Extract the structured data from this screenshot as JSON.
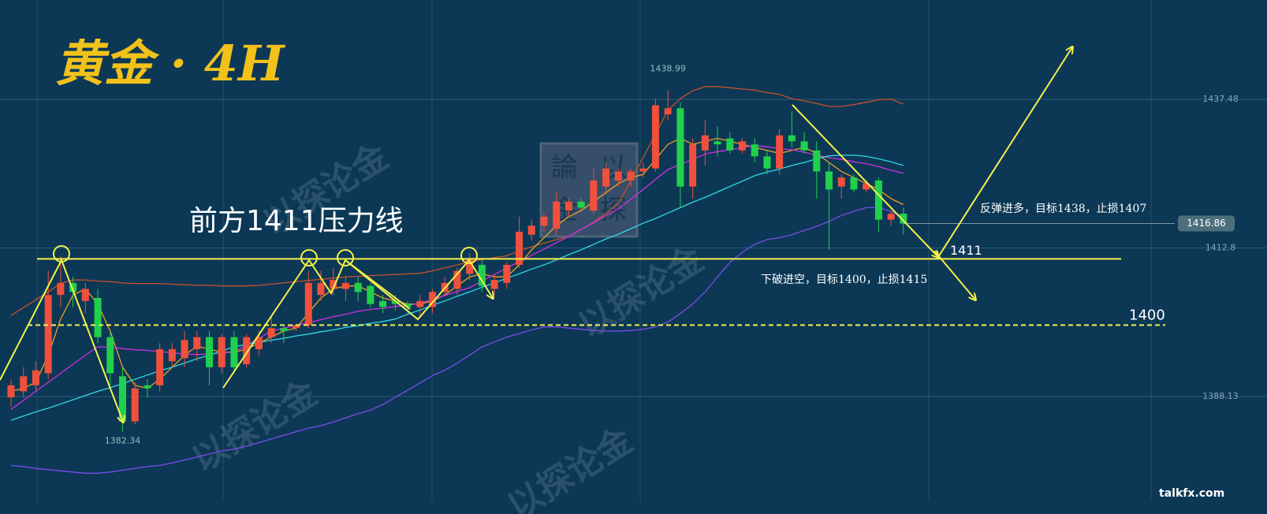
{
  "chart_data": {
    "type": "candlestick",
    "title": "黄金 · 4H",
    "ylim": [
      1370.73,
      1453.97
    ],
    "yticks": [
      1388.13,
      1412.8,
      1437.48
    ],
    "grid": true,
    "up_color": "#f0503c",
    "down_color": "#1fd14b",
    "open": [
      1388,
      1389,
      1390,
      1392,
      1405,
      1407,
      1404,
      1404.5,
      1398,
      1391.5,
      1384,
      1390,
      1390,
      1394,
      1394.5,
      1396,
      1398,
      1393,
      1398,
      1393.5,
      1396,
      1398,
      1399.5,
      1399.5,
      1400,
      1405,
      1406,
      1406,
      1407,
      1406.5,
      1404,
      1404,
      1403.5,
      1403,
      1403,
      1405.5,
      1406,
      1408.5,
      1410,
      1406,
      1407,
      1410,
      1415,
      1416.5,
      1416,
      1419,
      1420.5,
      1419,
      1423,
      1424,
      1424,
      1425.5,
      1426,
      1435,
      1436,
      1423,
      1429,
      1430.5,
      1431,
      1429,
      1430,
      1428,
      1426,
      1431.5,
      1430.5,
      1429,
      1425.5,
      1423,
      1424.5,
      1422.5,
      1424,
      1417.5,
      1418.5
    ],
    "high": [
      1391,
      1393,
      1394,
      1409,
      1411.5,
      1408,
      1407,
      1406,
      1399,
      1393,
      1390.5,
      1391,
      1397,
      1397,
      1399,
      1399,
      1399,
      1398.5,
      1399,
      1398.5,
      1399,
      1401.5,
      1400,
      1400,
      1409,
      1409,
      1409.5,
      1408,
      1408,
      1407,
      1405,
      1405,
      1404,
      1405,
      1406,
      1408,
      1409.5,
      1412,
      1411,
      1408.5,
      1410.5,
      1418,
      1417.5,
      1418.5,
      1422,
      1421,
      1421,
      1426,
      1427,
      1426,
      1426,
      1427,
      1437.5,
      1438.99,
      1437,
      1431,
      1434,
      1433,
      1432,
      1431,
      1431,
      1429,
      1432.5,
      1435.5,
      1432,
      1430.5,
      1427,
      1425,
      1425,
      1424,
      1424.5,
      1419,
      1419.5
    ],
    "low": [
      1386.5,
      1388,
      1389,
      1391,
      1403,
      1403,
      1402,
      1397,
      1390,
      1382.34,
      1383.5,
      1388,
      1389,
      1393,
      1393,
      1394,
      1390,
      1392,
      1392,
      1393,
      1395,
      1397,
      1397,
      1399,
      1399.5,
      1404,
      1405,
      1404,
      1404,
      1403,
      1402,
      1402.5,
      1402,
      1401.5,
      1402,
      1405,
      1405,
      1407.5,
      1405.5,
      1405,
      1406,
      1409.5,
      1414,
      1415.5,
      1415,
      1418,
      1419,
      1418.5,
      1422,
      1423,
      1423,
      1424.5,
      1425.5,
      1434,
      1419.5,
      1421,
      1426.5,
      1428,
      1428.5,
      1428.5,
      1427,
      1425,
      1425,
      1429.5,
      1428.5,
      1421,
      1412.5,
      1421,
      1422,
      1422,
      1415.5,
      1416.5,
      1415
    ],
    "close": [
      1390,
      1391.5,
      1392.5,
      1405,
      1407,
      1405.5,
      1406,
      1398,
      1392,
      1384,
      1389.5,
      1389.5,
      1396,
      1396,
      1397.5,
      1398,
      1393,
      1398,
      1393,
      1398,
      1398,
      1399.5,
      1399,
      1400,
      1407,
      1407,
      1407.5,
      1407,
      1405.5,
      1403.5,
      1403,
      1403.5,
      1403,
      1404,
      1405.5,
      1407,
      1409,
      1411,
      1406.5,
      1407.5,
      1410,
      1415.5,
      1416.5,
      1418,
      1420.5,
      1420.5,
      1419.5,
      1424,
      1426,
      1425.5,
      1425.5,
      1426,
      1436.5,
      1436,
      1423,
      1430,
      1431.5,
      1430,
      1429,
      1430.5,
      1428,
      1426,
      1431.5,
      1430.5,
      1429,
      1425.5,
      1422.5,
      1424.5,
      1422.5,
      1423.5,
      1417.5,
      1418.5,
      1416.86
    ],
    "lines": [
      {
        "color": "#c8502a",
        "values": [
          1401.6,
          1402.9,
          1404.2,
          1405.5,
          1406.9,
          1407.5,
          1407.5,
          1407.3,
          1407.2,
          1407.0,
          1406.9,
          1406.9,
          1406.9,
          1406.8,
          1406.7,
          1406.6,
          1406.6,
          1406.5,
          1406.5,
          1406.5,
          1406.6,
          1406.8,
          1407.0,
          1407.2,
          1407.4,
          1407.6,
          1407.8,
          1408.0,
          1408.1,
          1408.2,
          1408.3,
          1408.4,
          1408.5,
          1408.6,
          1409.0,
          1409.5,
          1410.0,
          1410.5,
          1410.9,
          1411.2,
          1411.5,
          1412.3,
          1413.0,
          1413.6,
          1414.2,
          1414.7,
          1415.9,
          1417.1,
          1418.5,
          1420.2,
          1423.9,
          1427.8,
          1431.7,
          1435.7,
          1437.6,
          1438.9,
          1439.6,
          1439.6,
          1439.4,
          1439.2,
          1439.0,
          1438.6,
          1438.3,
          1437.6,
          1437.2,
          1436.8,
          1436.3,
          1436.3,
          1436.6,
          1437.0,
          1437.4,
          1437.5,
          1436.7
        ]
      },
      {
        "color": "#f0a020",
        "values": [
          1389,
          1389.5,
          1390.5,
          1395,
          1401,
          1405,
          1406,
          1403.5,
          1399,
          1393,
          1390,
          1389.5,
          1391,
          1393,
          1395,
          1396.5,
          1396,
          1395.5,
          1395.5,
          1396,
          1397,
          1398,
          1399,
          1399.5,
          1402,
          1404.5,
          1406,
          1406.5,
          1406.5,
          1405.5,
          1404.5,
          1404,
          1403.5,
          1403.5,
          1404,
          1405,
          1406.5,
          1408,
          1408.5,
          1408,
          1408,
          1410,
          1412.5,
          1414.5,
          1416.5,
          1418,
          1419,
          1420.5,
          1422,
          1423.5,
          1424.5,
          1425,
          1427.5,
          1430,
          1431,
          1430,
          1430.5,
          1431,
          1430.5,
          1430,
          1429.5,
          1429,
          1428.5,
          1429,
          1429.5,
          1428.5,
          1427,
          1425.5,
          1424.5,
          1423.5,
          1422.5,
          1421,
          1420
        ]
      },
      {
        "color": "#d030e0",
        "values": [
          1386.0,
          1387.5,
          1389.0,
          1390.5,
          1392.0,
          1393.5,
          1395.0,
          1396.4,
          1396.3,
          1396.1,
          1395.9,
          1395.8,
          1395.6,
          1395.4,
          1395.2,
          1395.1,
          1395.2,
          1395.4,
          1395.5,
          1396.7,
          1397.8,
          1399.0,
          1399.5,
          1400.0,
          1400.4,
          1400.9,
          1401.4,
          1401.8,
          1402.3,
          1402.6,
          1402.8,
          1403.1,
          1403.3,
          1403.6,
          1404.3,
          1404.9,
          1405.6,
          1406.2,
          1407.3,
          1408.4,
          1409.5,
          1410.5,
          1411.6,
          1412.6,
          1413.7,
          1414.7,
          1415.9,
          1417.0,
          1418.2,
          1419.3,
          1420.9,
          1422.5,
          1424.2,
          1425.8,
          1426.7,
          1427.5,
          1428.4,
          1428.8,
          1429.1,
          1429.5,
          1429.8,
          1429.6,
          1429.3,
          1429.1,
          1428.7,
          1428.2,
          1427.8,
          1427.5,
          1427.1,
          1426.8,
          1426.3,
          1425.7,
          1425.2
        ]
      },
      {
        "color": "#30d8e0",
        "values": [
          1384.2,
          1384.9,
          1385.6,
          1386.2,
          1386.9,
          1387.6,
          1388.3,
          1389.0,
          1389.6,
          1390.3,
          1391.0,
          1391.7,
          1392.4,
          1393.0,
          1393.7,
          1394.4,
          1395.0,
          1395.7,
          1396.4,
          1396.8,
          1397.1,
          1397.5,
          1397.8,
          1398.2,
          1398.5,
          1398.9,
          1399.2,
          1399.6,
          1399.9,
          1400.3,
          1400.6,
          1401.0,
          1401.8,
          1402.5,
          1403.3,
          1404.0,
          1404.8,
          1405.5,
          1406.3,
          1407.0,
          1407.8,
          1408.5,
          1409.3,
          1410.0,
          1410.8,
          1411.7,
          1412.5,
          1413.4,
          1414.3,
          1415.1,
          1416.0,
          1416.9,
          1417.7,
          1418.6,
          1419.5,
          1420.4,
          1421.2,
          1422.1,
          1423.0,
          1423.9,
          1424.8,
          1425.4,
          1425.9,
          1426.5,
          1427.0,
          1427.6,
          1428.1,
          1428.2,
          1428.2,
          1428.0,
          1427.6,
          1427.1,
          1426.5
        ]
      },
      {
        "color": "#7a4ce8",
        "values": [
          1376.7,
          1376.5,
          1376.2,
          1376.0,
          1375.8,
          1375.6,
          1375.4,
          1375.4,
          1375.6,
          1375.9,
          1376.2,
          1376.5,
          1376.7,
          1377.1,
          1377.6,
          1378.1,
          1378.6,
          1379.1,
          1379.4,
          1379.9,
          1380.5,
          1381.1,
          1381.7,
          1382.3,
          1382.9,
          1383.3,
          1383.9,
          1384.6,
          1385.3,
          1385.9,
          1386.8,
          1388.0,
          1389.2,
          1390.4,
          1391.6,
          1392.5,
          1393.7,
          1395.0,
          1396.4,
          1397.2,
          1398.0,
          1398.6,
          1399.2,
          1399.7,
          1399.7,
          1399.5,
          1399.3,
          1399.1,
          1399.0,
          1399.0,
          1399.1,
          1399.3,
          1399.7,
          1400.5,
          1401.9,
          1403.5,
          1405.5,
          1408.0,
          1410.4,
          1412.1,
          1413.4,
          1414.2,
          1414.5,
          1415.0,
          1415.7,
          1416.4,
          1417.2,
          1418.2,
          1418.9,
          1419.5,
          1419.5,
          1418.9,
          1418.0
        ]
      }
    ],
    "levels": [
      1411,
      1400
    ],
    "level_dashed": [
      false,
      true
    ],
    "level_color": "#f4f24a",
    "resistance_note": "前方1411压力线",
    "long_plan": "反弹进多，目标1438，止损1407",
    "short_plan": "下破进空，目标1400，止损1415",
    "watermark": "以探论金",
    "seal": [
      "論",
      "以",
      "金",
      "探"
    ],
    "site": "talkfx.com"
  }
}
